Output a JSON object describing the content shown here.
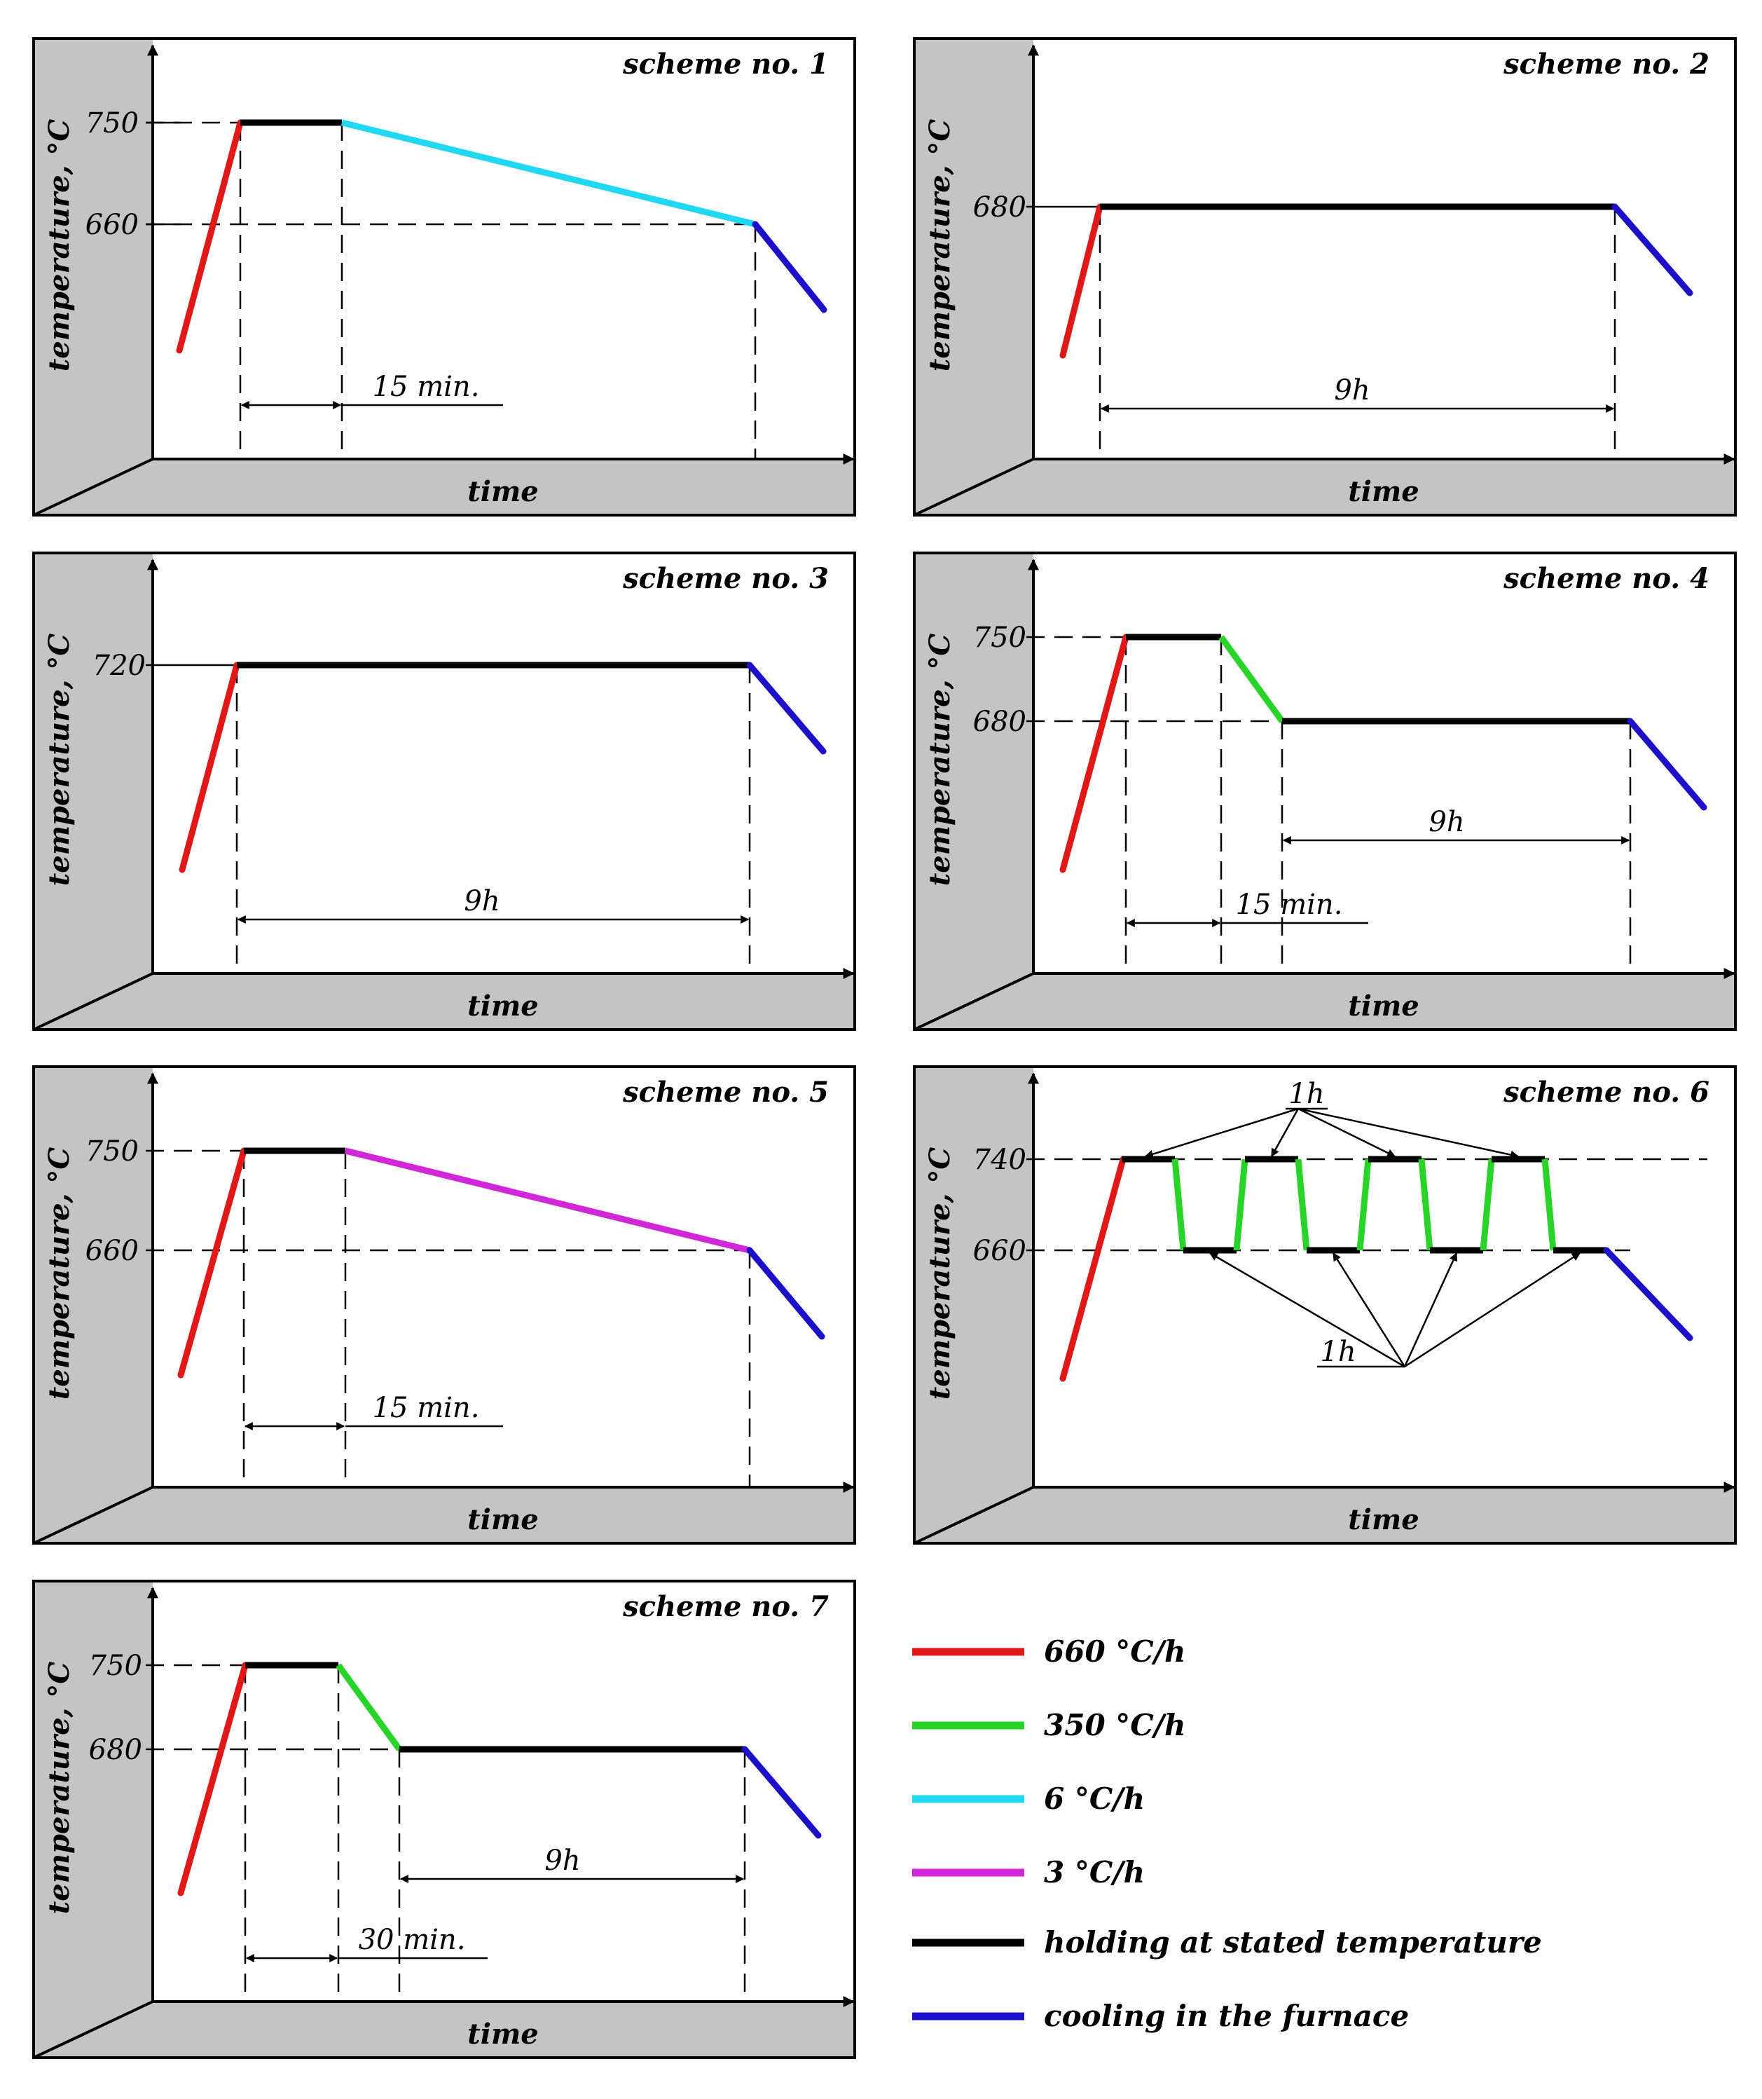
{
  "figure": {
    "x_axis_label": "time",
    "y_axis_label": "temperature, °C"
  },
  "colors": {
    "heating": "#e01818",
    "fast_cooling": "#28d428",
    "slow_cooling_6": "#22d8f0",
    "slow_cooling_3": "#d028d8",
    "holding": "#000000",
    "furnace_cooling": "#1c10c8",
    "panel_side": "#c4c4c4"
  },
  "schemes": [
    {
      "title": "scheme no. 1",
      "temps": [
        "750",
        "660"
      ],
      "dims": [
        "15 min."
      ]
    },
    {
      "title": "scheme no. 2",
      "temps": [
        "680"
      ],
      "dims": [
        "9h"
      ]
    },
    {
      "title": "scheme no. 3",
      "temps": [
        "720"
      ],
      "dims": [
        "9h"
      ]
    },
    {
      "title": "scheme no. 4",
      "temps": [
        "750",
        "680"
      ],
      "dims": [
        "9h",
        "15 min."
      ]
    },
    {
      "title": "scheme no. 5",
      "temps": [
        "750",
        "660"
      ],
      "dims": [
        "15 min."
      ]
    },
    {
      "title": "scheme no. 6",
      "temps": [
        "740",
        "660"
      ],
      "dims": [
        "1h",
        "1h"
      ]
    },
    {
      "title": "scheme no. 7",
      "temps": [
        "750",
        "680"
      ],
      "dims": [
        "9h",
        "30 min."
      ]
    }
  ],
  "legend": [
    {
      "label": "660 °C/h",
      "color": "#e01818"
    },
    {
      "label": "350 °C/h",
      "color": "#28d428"
    },
    {
      "label": "6 °C/h",
      "color": "#22d8f0"
    },
    {
      "label": "3 °C/h",
      "color": "#d028d8"
    },
    {
      "label": "holding at stated temperature",
      "color": "#000000"
    },
    {
      "label": "cooling in the furnace",
      "color": "#1c10c8"
    }
  ]
}
